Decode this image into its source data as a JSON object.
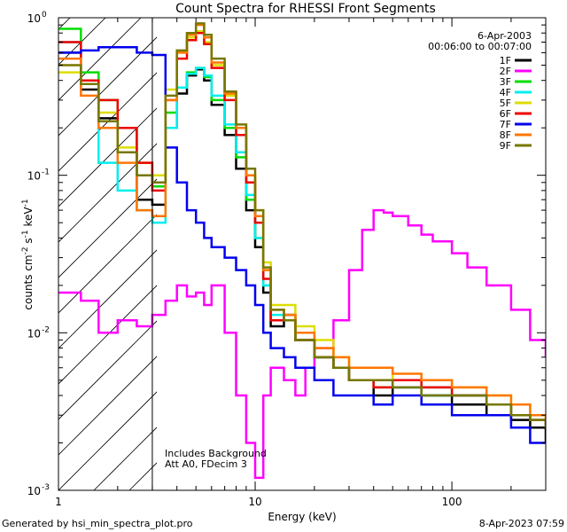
{
  "footer": {
    "generated_by": "Generated by hsi_min_spectra_plot.pro",
    "timestamp": "8-Apr-2023 07:59"
  },
  "chart_data": {
    "type": "line",
    "title": "Count Spectra for RHESSI Front Segments",
    "xlabel": "Energy (keV)",
    "ylabel": "counts cm-2 s-1 keV-1",
    "xscale": "log",
    "yscale": "log",
    "xlim": [
      1,
      300
    ],
    "ylim": [
      0.001,
      1
    ],
    "x_ticks": [
      {
        "v": 1,
        "label": "1"
      },
      {
        "v": 10,
        "label": "10"
      },
      {
        "v": 100,
        "label": "100"
      }
    ],
    "y_ticks": [
      {
        "v": 1,
        "base": "10",
        "exp": "0"
      },
      {
        "v": 0.1,
        "base": "10",
        "exp": "-1"
      },
      {
        "v": 0.01,
        "base": "10",
        "exp": "-2"
      },
      {
        "v": 0.001,
        "base": "10",
        "exp": "-3"
      }
    ],
    "grid": false,
    "legend_position": "top-right",
    "legend_date": "6-Apr-2003",
    "legend_time": "00:06:00 to 00:07:00",
    "annotations": [
      "Includes Background",
      "Att A0, FDecim 3"
    ],
    "hatched_region_max_energy": 3,
    "series": [
      {
        "name": "1F",
        "color": "#000000",
        "x": [
          1.0,
          1.3,
          1.6,
          2.0,
          2.5,
          3.0,
          3.5,
          4.0,
          4.5,
          5.0,
          5.5,
          6.0,
          7.0,
          8.0,
          9.0,
          10.0,
          11.0,
          12.0,
          14.0,
          16.0,
          20.0,
          25.0,
          30.0,
          40.0,
          50.0,
          70.0,
          100.0,
          150.0,
          200.0,
          250.0,
          300.0
        ],
        "y": [
          0.6,
          0.35,
          0.23,
          0.14,
          0.07,
          0.065,
          0.2,
          0.33,
          0.43,
          0.47,
          0.4,
          0.28,
          0.18,
          0.11,
          0.06,
          0.035,
          0.018,
          0.011,
          0.013,
          0.009,
          0.007,
          0.006,
          0.005,
          0.004,
          0.0045,
          0.004,
          0.0035,
          0.003,
          0.0028,
          0.0025,
          0.002
        ]
      },
      {
        "name": "2F",
        "color": "#ff00ff",
        "x": [
          1.0,
          1.3,
          1.6,
          2.0,
          2.5,
          3.0,
          3.5,
          4.0,
          4.5,
          5.0,
          5.5,
          6.0,
          7.0,
          8.0,
          9.0,
          10.0,
          11.0,
          12.0,
          14.0,
          16.0,
          18.0,
          20.0,
          25.0,
          30.0,
          35.0,
          40.0,
          45.0,
          50.0,
          60.0,
          70.0,
          80.0,
          100.0,
          120.0,
          150.0,
          200.0,
          250.0,
          300.0
        ],
        "y": [
          0.018,
          0.016,
          0.01,
          0.012,
          0.011,
          0.013,
          0.016,
          0.02,
          0.017,
          0.018,
          0.015,
          0.02,
          0.01,
          0.004,
          0.002,
          0.0012,
          0.004,
          0.006,
          0.005,
          0.004,
          0.006,
          0.008,
          0.012,
          0.025,
          0.045,
          0.06,
          0.058,
          0.055,
          0.048,
          0.042,
          0.038,
          0.032,
          0.026,
          0.02,
          0.014,
          0.009,
          0.007
        ]
      },
      {
        "name": "3F",
        "color": "#00dd00",
        "x": [
          1.0,
          1.3,
          1.6,
          2.0,
          2.5,
          3.0,
          3.5,
          4.0,
          4.5,
          5.0,
          5.5,
          6.0,
          7.0,
          8.0,
          9.0,
          10.0,
          11.0,
          12.0,
          14.0,
          16.0,
          20.0,
          25.0,
          30.0,
          40.0,
          50.0,
          70.0,
          100.0,
          150.0,
          200.0,
          250.0,
          300.0
        ],
        "y": [
          0.85,
          0.45,
          0.3,
          0.2,
          0.1,
          0.085,
          0.25,
          0.36,
          0.45,
          0.48,
          0.42,
          0.3,
          0.2,
          0.13,
          0.07,
          0.04,
          0.02,
          0.012,
          0.012,
          0.009,
          0.007,
          0.006,
          0.005,
          0.0045,
          0.005,
          0.0045,
          0.004,
          0.0035,
          0.003,
          0.0028,
          0.0025
        ]
      },
      {
        "name": "4F",
        "color": "#00eeee",
        "x": [
          1.0,
          1.3,
          1.6,
          2.0,
          2.5,
          3.0,
          3.5,
          4.0,
          4.5,
          5.0,
          5.5,
          6.0,
          7.0,
          8.0,
          9.0,
          10.0,
          11.0,
          12.0,
          14.0,
          16.0,
          20.0,
          25.0,
          30.0,
          40.0,
          50.0,
          70.0,
          100.0,
          150.0,
          200.0,
          250.0,
          300.0
        ],
        "y": [
          0.7,
          0.4,
          0.12,
          0.08,
          0.06,
          0.05,
          0.2,
          0.36,
          0.44,
          0.48,
          0.43,
          0.32,
          0.21,
          0.14,
          0.075,
          0.04,
          0.02,
          0.013,
          0.012,
          0.009,
          0.007,
          0.006,
          0.005,
          0.005,
          0.0045,
          0.004,
          0.004,
          0.0035,
          0.003,
          0.0028,
          0.0025
        ]
      },
      {
        "name": "5F",
        "color": "#dddd00",
        "x": [
          1.0,
          1.3,
          1.6,
          2.0,
          2.5,
          3.0,
          3.5,
          4.0,
          4.5,
          5.0,
          5.5,
          6.0,
          7.0,
          8.0,
          9.0,
          10.0,
          11.0,
          12.0,
          14.0,
          16.0,
          20.0,
          25.0,
          30.0,
          40.0,
          50.0,
          70.0,
          100.0,
          150.0,
          200.0,
          250.0,
          300.0
        ],
        "y": [
          0.45,
          0.4,
          0.25,
          0.15,
          0.12,
          0.1,
          0.35,
          0.6,
          0.75,
          0.82,
          0.7,
          0.5,
          0.32,
          0.2,
          0.1,
          0.06,
          0.028,
          0.015,
          0.015,
          0.011,
          0.009,
          0.007,
          0.006,
          0.006,
          0.005,
          0.005,
          0.0045,
          0.004,
          0.0035,
          0.003,
          0.0028
        ]
      },
      {
        "name": "6F",
        "color": "#ee0000",
        "x": [
          1.0,
          1.3,
          1.6,
          2.0,
          2.5,
          3.0,
          3.5,
          4.0,
          4.5,
          5.0,
          5.5,
          6.0,
          7.0,
          8.0,
          9.0,
          10.0,
          11.0,
          12.0,
          14.0,
          16.0,
          20.0,
          25.0,
          30.0,
          40.0,
          50.0,
          70.0,
          100.0,
          150.0,
          200.0,
          250.0,
          300.0
        ],
        "y": [
          0.7,
          0.4,
          0.3,
          0.2,
          0.12,
          0.08,
          0.3,
          0.55,
          0.72,
          0.8,
          0.68,
          0.48,
          0.3,
          0.18,
          0.09,
          0.05,
          0.022,
          0.012,
          0.012,
          0.009,
          0.007,
          0.006,
          0.005,
          0.0045,
          0.005,
          0.0045,
          0.004,
          0.0035,
          0.003,
          0.0028,
          0.0025
        ]
      },
      {
        "name": "7F",
        "color": "#0000ee",
        "x": [
          1.0,
          1.3,
          1.6,
          2.0,
          2.5,
          3.0,
          3.5,
          4.0,
          4.5,
          5.0,
          5.5,
          6.0,
          7.0,
          8.0,
          9.0,
          10.0,
          11.0,
          12.0,
          14.0,
          16.0,
          20.0,
          25.0,
          30.0,
          40.0,
          50.0,
          70.0,
          100.0,
          150.0,
          200.0,
          250.0,
          300.0
        ],
        "y": [
          0.6,
          0.62,
          0.65,
          0.65,
          0.6,
          0.58,
          0.15,
          0.09,
          0.06,
          0.05,
          0.04,
          0.035,
          0.03,
          0.025,
          0.02,
          0.015,
          0.01,
          0.008,
          0.007,
          0.006,
          0.005,
          0.004,
          0.004,
          0.0035,
          0.004,
          0.0035,
          0.003,
          0.003,
          0.0025,
          0.002,
          0.002
        ]
      },
      {
        "name": "8F",
        "color": "#ff7700",
        "x": [
          1.0,
          1.3,
          1.6,
          2.0,
          2.5,
          3.0,
          3.5,
          4.0,
          4.5,
          5.0,
          5.5,
          6.0,
          7.0,
          8.0,
          9.0,
          10.0,
          11.0,
          12.0,
          14.0,
          16.0,
          20.0,
          25.0,
          30.0,
          40.0,
          50.0,
          70.0,
          100.0,
          150.0,
          200.0,
          250.0,
          300.0
        ],
        "y": [
          0.55,
          0.32,
          0.2,
          0.12,
          0.06,
          0.055,
          0.3,
          0.6,
          0.78,
          0.9,
          0.75,
          0.52,
          0.33,
          0.2,
          0.1,
          0.055,
          0.025,
          0.014,
          0.013,
          0.01,
          0.008,
          0.007,
          0.006,
          0.006,
          0.0055,
          0.005,
          0.0045,
          0.004,
          0.0035,
          0.003,
          0.0028
        ]
      },
      {
        "name": "9F",
        "color": "#777700",
        "x": [
          1.0,
          1.3,
          1.6,
          2.0,
          2.5,
          3.0,
          3.5,
          4.0,
          4.5,
          5.0,
          5.5,
          6.0,
          7.0,
          8.0,
          9.0,
          10.0,
          11.0,
          12.0,
          14.0,
          16.0,
          20.0,
          25.0,
          30.0,
          40.0,
          50.0,
          70.0,
          100.0,
          150.0,
          200.0,
          250.0,
          300.0
        ],
        "y": [
          0.5,
          0.38,
          0.22,
          0.14,
          0.1,
          0.09,
          0.32,
          0.62,
          0.8,
          0.92,
          0.78,
          0.55,
          0.34,
          0.21,
          0.11,
          0.06,
          0.026,
          0.014,
          0.012,
          0.009,
          0.007,
          0.006,
          0.005,
          0.005,
          0.0045,
          0.004,
          0.004,
          0.0035,
          0.003,
          0.0028,
          0.0025
        ]
      }
    ]
  }
}
